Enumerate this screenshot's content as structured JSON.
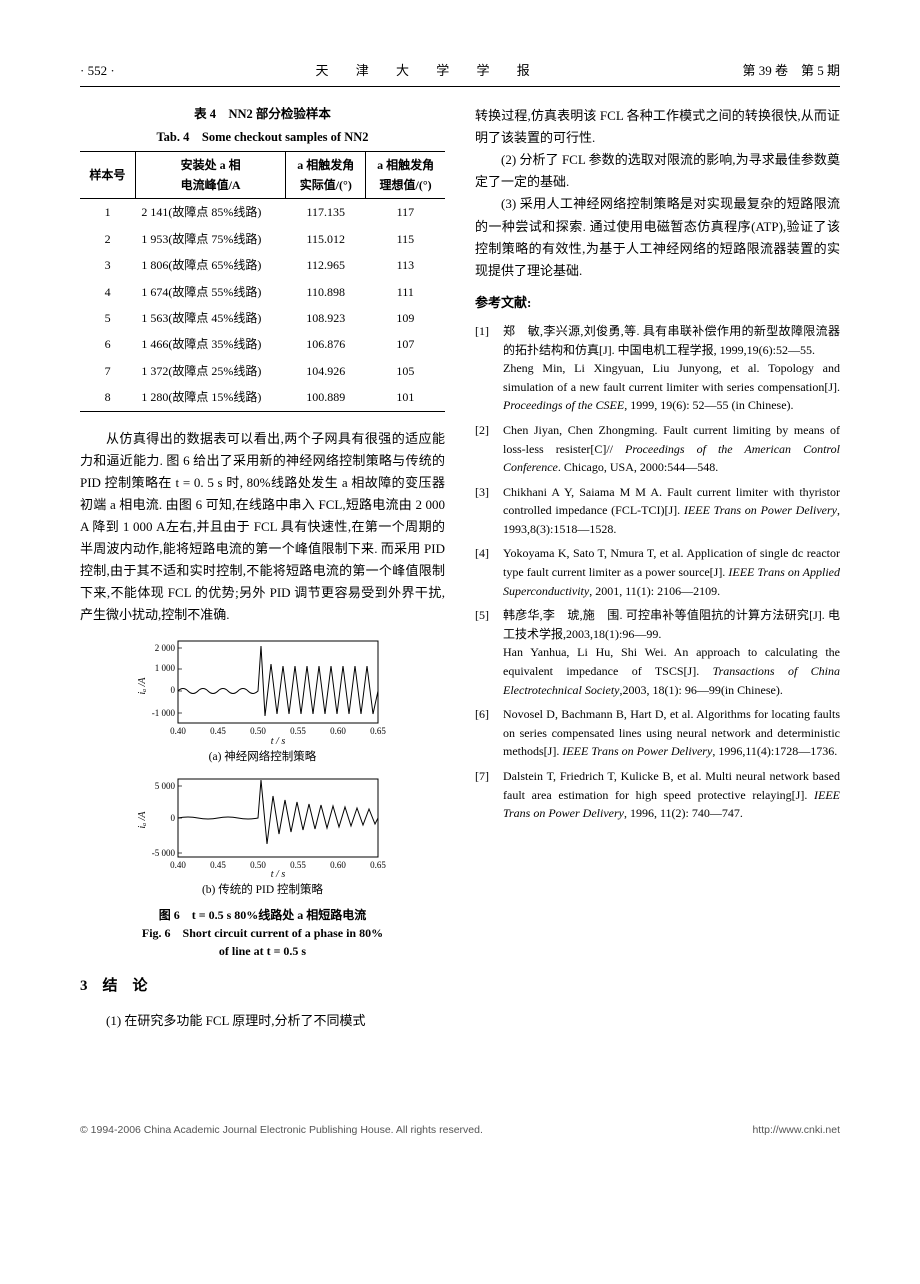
{
  "header": {
    "page_num": "· 552 ·",
    "journal": "天 津 大 学 学 报",
    "issue": "第 39 卷　第 5 期"
  },
  "table4": {
    "caption_cn": "表 4　NN2 部分检验样本",
    "caption_en": "Tab. 4　Some checkout samples of NN2",
    "headers": {
      "c1": "样本号",
      "c2_l1": "安装处 a 相",
      "c2_l2": "电流峰值/A",
      "c3_l1": "a 相触发角",
      "c3_l2": "实际值/(°)",
      "c4_l1": "a 相触发角",
      "c4_l2": "理想值/(°)"
    },
    "rows": [
      {
        "n": "1",
        "i": "2 141(故障点 85%线路)",
        "a": "117.135",
        "d": "117"
      },
      {
        "n": "2",
        "i": "1 953(故障点 75%线路)",
        "a": "115.012",
        "d": "115"
      },
      {
        "n": "3",
        "i": "1 806(故障点 65%线路)",
        "a": "112.965",
        "d": "113"
      },
      {
        "n": "4",
        "i": "1 674(故障点 55%线路)",
        "a": "110.898",
        "d": "111"
      },
      {
        "n": "5",
        "i": "1 563(故障点 45%线路)",
        "a": "108.923",
        "d": "109"
      },
      {
        "n": "6",
        "i": "1 466(故障点 35%线路)",
        "a": "106.876",
        "d": "107"
      },
      {
        "n": "7",
        "i": "1 372(故障点 25%线路)",
        "a": "104.926",
        "d": "105"
      },
      {
        "n": "8",
        "i": "1 280(故障点 15%线路)",
        "a": "100.889",
        "d": "101"
      }
    ]
  },
  "para1": "从仿真得出的数据表可以看出,两个子网具有很强的适应能力和逼近能力. 图 6 给出了采用新的神经网络控制策略与传统的 PID 控制策略在 t = 0. 5 s 时, 80%线路处发生 a 相故障的变压器初端 a 相电流. 由图 6 可知,在线路中串入 FCL,短路电流由 2 000 A 降到 1 000 A左右,并且由于 FCL 具有快速性,在第一个周期的半周波内动作,能将短路电流的第一个峰值限制下来. 而采用 PID 控制,由于其不适和实时控制,不能将短路电流的第一个峰值限制下来,不能体现 FCL 的优势;另外 PID 调节更容易受到外界干扰,产生微小扰动,控制不准确.",
  "fig6": {
    "a": {
      "xlabel": "t / s",
      "ylabel": "iₐ /A",
      "xlim": [
        0.4,
        0.68
      ],
      "ylim": [
        -1500,
        2200
      ],
      "yticks": [
        "-1 000",
        "0",
        "1 000",
        "2 000"
      ],
      "xticks": [
        "0.40",
        "0.45",
        "0.50",
        "0.55",
        "0.60",
        "0.65"
      ],
      "line_color": "#000000",
      "background": "#ffffff",
      "caption": "(a) 神经网络控制策略"
    },
    "b": {
      "xlabel": "t / s",
      "ylabel": "iₐ /A",
      "xlim": [
        0.4,
        0.68
      ],
      "ylim": [
        -6000,
        6000
      ],
      "yticks": [
        "-5 000",
        "0",
        "5 000"
      ],
      "xticks": [
        "0.40",
        "0.45",
        "0.50",
        "0.55",
        "0.60",
        "0.65"
      ],
      "line_color": "#000000",
      "background": "#ffffff",
      "caption": "(b) 传统的 PID 控制策略"
    },
    "title_cn": "图 6　t = 0.5 s 80%线路处 a 相短路电流",
    "title_en1": "Fig. 6　Short circuit current of a phase in 80%",
    "title_en2": "of line at t = 0.5 s"
  },
  "section3": {
    "heading": "3　结　论",
    "p1": "(1) 在研究多功能 FCL 原理时,分析了不同模式"
  },
  "rightcol": {
    "p_cont": "转换过程,仿真表明该 FCL 各种工作模式之间的转换很快,从而证明了该装置的可行性.",
    "p2": "(2) 分析了 FCL 参数的选取对限流的影响,为寻求最佳参数奠定了一定的基础.",
    "p3": "(3) 采用人工神经网络控制策略是对实现最复杂的短路限流的一种尝试和探索. 通过使用电磁暂态仿真程序(ATP),验证了该控制策略的有效性,为基于人工神经网络的短路限流器装置的实现提供了理论基础."
  },
  "refs_head": "参考文献:",
  "refs": [
    {
      "n": "[1]",
      "cn": "郑　敏,李兴源,刘俊勇,等. 具有串联补偿作用的新型故障限流器的拓扑结构和仿真[J]. 中国电机工程学报, 1999,19(6):52—55.",
      "en": "Zheng Min, Li Xingyuan, Liu Junyong, et al. Topology and simulation of a new fault current limiter with series compensation[J]. <em>Proceedings of the CSEE</em>, 1999, 19(6): 52—55 (in Chinese)."
    },
    {
      "n": "[2]",
      "cn": "",
      "en": "Chen Jiyan, Chen Zhongming. Fault current limiting by means of loss-less resister[C]// <em>Proceedings of the American Control Conference</em>. Chicago, USA, 2000:544—548."
    },
    {
      "n": "[3]",
      "cn": "",
      "en": "Chikhani A Y, Saiama M M A. Fault current limiter with thyristor controlled impedance (FCL-TCI)[J]. <em>IEEE Trans on Power Delivery</em>, 1993,8(3):1518—1528."
    },
    {
      "n": "[4]",
      "cn": "",
      "en": "Yokoyama K, Sato T, Nmura T, et al. Application of single dc reactor type fault current limiter as a power source[J]. <em>IEEE Trans on Applied Superconductivity</em>, 2001, 11(1): 2106—2109."
    },
    {
      "n": "[5]",
      "cn": "韩彦华,李　琥,施　围. 可控串补等值阻抗的计算方法研究[J]. 电工技术学报,2003,18(1):96—99.",
      "en": "Han Yanhua, Li Hu, Shi Wei. An approach to calculating the equivalent impedance of TSCS[J]. <em>Transactions of China Electrotechnical Society</em>,2003, 18(1): 96—99(in Chinese)."
    },
    {
      "n": "[6]",
      "cn": "",
      "en": "Novosel D, Bachmann B, Hart D, et al. Algorithms for locating faults on series compensated lines using neural network and deterministic methods[J]. <em>IEEE Trans on Power Delivery</em>, 1996,11(4):1728—1736."
    },
    {
      "n": "[7]",
      "cn": "",
      "en": "Dalstein T, Friedrich T, Kulicke B, et al. Multi neural network based fault area estimation for high speed protective relaying[J]. <em>IEEE Trans on Power Delivery</em>, 1996, 11(2): 740—747."
    }
  ],
  "footer": {
    "left": "© 1994-2006 China Academic Journal Electronic Publishing House. All rights reserved.",
    "right": "http://www.cnki.net"
  }
}
